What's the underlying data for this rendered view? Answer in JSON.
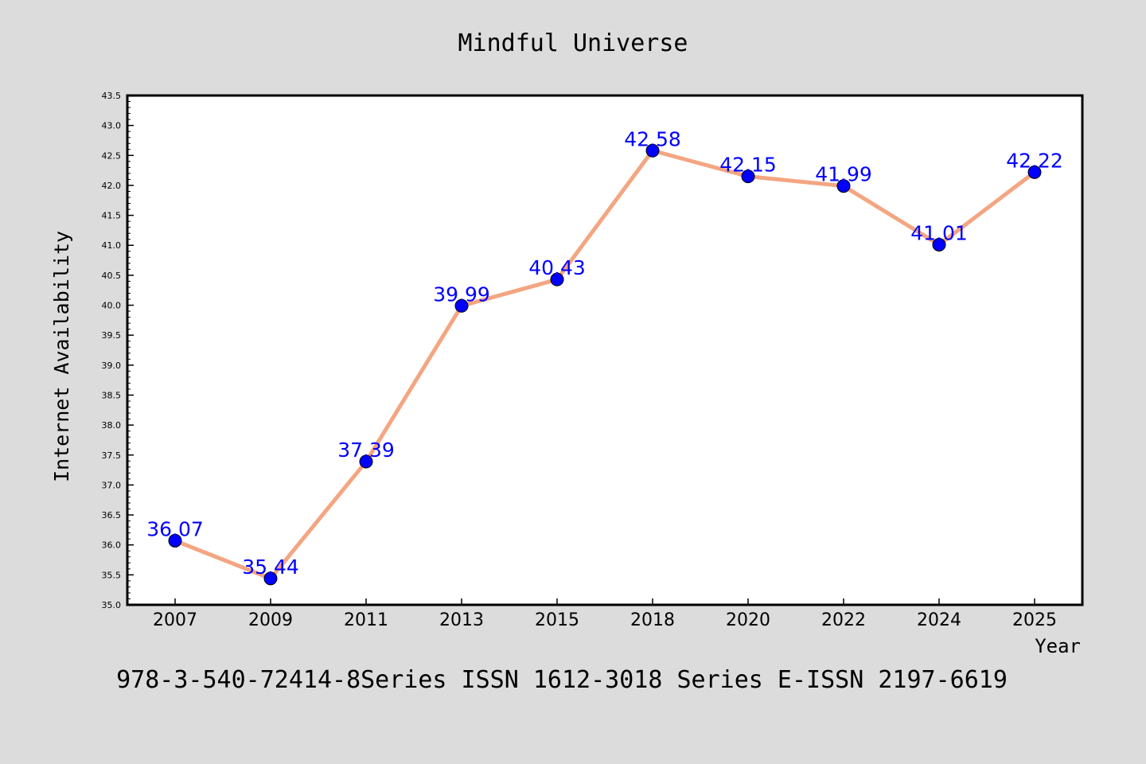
{
  "colors": {
    "background": "#dcdcdc",
    "plot_background": "#ffffff",
    "line": "#f4a582",
    "marker": "#0000ff",
    "data_label": "#0000ff",
    "axis": "#000000"
  },
  "footer": {
    "text": "978-3-540-72414-8Series ISSN 1612-3018 Series E-ISSN 2197-6619"
  },
  "chart_data": {
    "type": "line",
    "title": "Mindful Universe",
    "xlabel": "Year",
    "ylabel": "Internet Availability",
    "categories": [
      "2007",
      "2009",
      "2011",
      "2013",
      "2015",
      "2018",
      "2020",
      "2022",
      "2024",
      "2025"
    ],
    "series": [
      {
        "values": [
          36.07,
          35.44,
          37.39,
          39.99,
          40.43,
          42.58,
          42.15,
          41.99,
          41.01,
          42.22
        ],
        "labels": [
          "36.07",
          "35.44",
          "37.39",
          "39.99",
          "40.43",
          "42.58",
          "42.15",
          "41.99",
          "41.01",
          "42.22"
        ]
      }
    ],
    "ylim": [
      35.0,
      43.5
    ],
    "y_ticks": [
      "35.0",
      "35.5",
      "36.0",
      "36.5",
      "37.0",
      "37.5",
      "38.0",
      "38.5",
      "39.0",
      "39.5",
      "40.0",
      "40.5",
      "41.0",
      "41.5",
      "42.0",
      "42.5",
      "43.0",
      "43.5"
    ],
    "grid": false,
    "legend": "none"
  }
}
